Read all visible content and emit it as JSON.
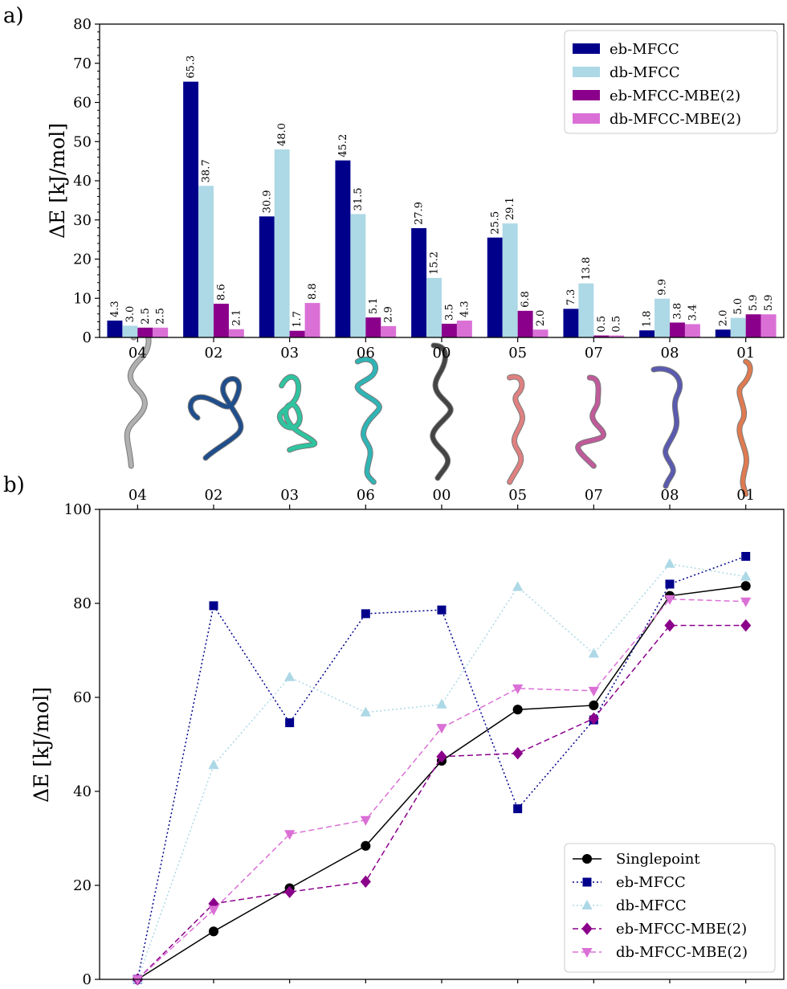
{
  "chart_data": [
    {
      "panel_label": "a)",
      "type": "bar",
      "categories": [
        "04",
        "02",
        "03",
        "06",
        "00",
        "05",
        "07",
        "08",
        "01"
      ],
      "ylabel": "ΔE [kJ/mol]",
      "ylim": [
        0,
        80
      ],
      "yticks": [
        0,
        10,
        20,
        30,
        40,
        50,
        60,
        70,
        80
      ],
      "grid": false,
      "legend_position": "top-right",
      "series": [
        {
          "name": "eb-MFCC",
          "color": "#00008b",
          "values": [
            4.3,
            65.3,
            30.9,
            45.2,
            27.9,
            25.5,
            7.3,
            1.8,
            2.0
          ],
          "labels": [
            "4.3",
            "65.3",
            "30.9",
            "45.2",
            "27.9",
            "25.5",
            "7.3",
            "1.8",
            "2.0"
          ]
        },
        {
          "name": "db-MFCC",
          "color": "#add8e6",
          "values": [
            3.0,
            38.7,
            48.0,
            31.5,
            15.2,
            29.1,
            13.8,
            9.9,
            5.0
          ],
          "labels": [
            "3.0",
            "38.7",
            "48.0",
            "31.5",
            "15.2",
            "29.1",
            "13.8",
            "9.9",
            "5.0"
          ]
        },
        {
          "name": "eb-MFCC-MBE(2)",
          "color": "#8b008b",
          "values": [
            2.5,
            8.6,
            1.7,
            5.1,
            3.5,
            6.8,
            0.5,
            3.8,
            5.9
          ],
          "labels": [
            "2.5",
            "8.6",
            "1.7",
            "5.1",
            "3.5",
            "6.8",
            "0.5",
            "3.8",
            "5.9"
          ]
        },
        {
          "name": "db-MFCC-MBE(2)",
          "color": "#da70d6",
          "values": [
            2.5,
            2.1,
            8.8,
            2.9,
            4.3,
            2.0,
            0.5,
            3.4,
            5.9
          ],
          "labels": [
            "2.5",
            "2.1",
            "8.8",
            "2.9",
            "4.3",
            "2.0",
            "0.5",
            "3.4",
            "5.9"
          ]
        }
      ],
      "structure_colors": [
        "#b0b0b0",
        "#1f4e8c",
        "#2ec4a0",
        "#2fb5b5",
        "#444444",
        "#e08080",
        "#c05a9a",
        "#5a5ab0",
        "#e07a50"
      ]
    },
    {
      "panel_label": "b)",
      "type": "line",
      "categories": [
        "04",
        "02",
        "03",
        "06",
        "00",
        "05",
        "07",
        "08",
        "01"
      ],
      "ylabel": "ΔE [kJ/mol]",
      "ylim": [
        0,
        100
      ],
      "yticks": [
        0,
        20,
        40,
        60,
        80,
        100
      ],
      "grid": false,
      "legend_position": "bottom-right",
      "series": [
        {
          "name": "Singlepoint",
          "color": "#000000",
          "style": "solid",
          "marker": "circle",
          "values": [
            0,
            10.2,
            19.4,
            28.4,
            46.5,
            57.4,
            58.3,
            81.6,
            83.7
          ]
        },
        {
          "name": "eb-MFCC",
          "color": "#00008b",
          "style": "dotted",
          "marker": "square",
          "values": [
            0,
            79.5,
            54.6,
            77.8,
            78.6,
            36.3,
            55.2,
            84.1,
            90.0
          ]
        },
        {
          "name": "db-MFCC",
          "color": "#add8e6",
          "style": "dotted",
          "marker": "triangle-up",
          "values": [
            0,
            45.6,
            64.3,
            56.8,
            58.5,
            83.5,
            69.3,
            88.4,
            85.7
          ]
        },
        {
          "name": "eb-MFCC-MBE(2)",
          "color": "#8b008b",
          "style": "dashed",
          "marker": "diamond",
          "values": [
            0,
            16.1,
            18.6,
            20.8,
            47.4,
            48.1,
            55.5,
            75.3,
            75.3
          ]
        },
        {
          "name": "db-MFCC-MBE(2)",
          "color": "#da70d6",
          "style": "dashed",
          "marker": "triangle-down",
          "values": [
            0,
            14.8,
            30.9,
            33.9,
            53.5,
            61.9,
            61.4,
            80.9,
            80.4
          ]
        }
      ]
    }
  ]
}
